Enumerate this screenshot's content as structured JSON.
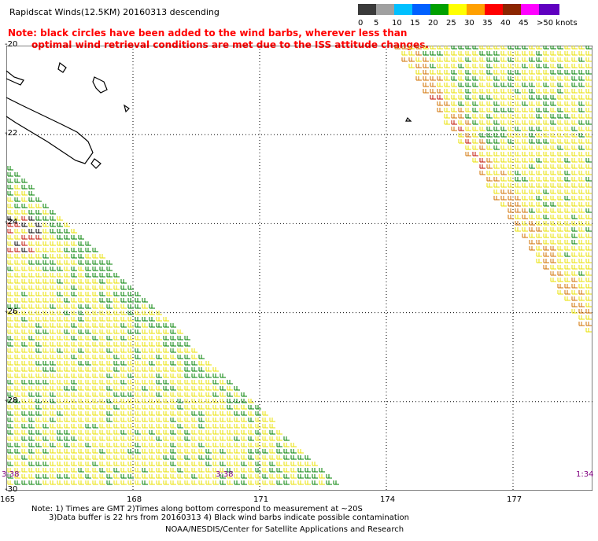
{
  "title": "Rapidscat Winds(12.5KM) 20160313 descending",
  "note_line1": "Note: black circles have been added to the wind barbs, wherever less than",
  "note_line2": "optimal wind retrieval conditions are met due to the ISS attitude changes.",
  "legend": {
    "labels": [
      "0",
      "5",
      "10",
      "15",
      "20",
      "25",
      "30",
      "35",
      "40",
      "45",
      ">50 knots"
    ],
    "colors": [
      "#3a3a3a",
      "#a0a0a0",
      "#00c0ff",
      "#0060ff",
      "#00a000",
      "#ffff00",
      "#ffa000",
      "#ff0000",
      "#8b2500",
      "#ff00ff",
      "#6000c0"
    ]
  },
  "lat_labels": [
    "-20",
    "-22",
    "-24",
    "-26",
    "-28",
    "-30"
  ],
  "lon_labels": [
    "165",
    "168",
    "171",
    "174",
    "177"
  ],
  "time_labels": [
    "3:38",
    "3:38",
    "1:34"
  ],
  "footnote1": "Note: 1) Times are GMT 2)Times along bottom correspond to measurement at ~20S",
  "footnote2": "3)Data buffer is 22 hrs from 20160313 4) Black wind barbs indicate possible contamination",
  "credit": "NOAA/NESDIS/Center for Satellite Applications and Research",
  "barb_colors": {
    "yellow": "#e8e000",
    "green": "#008000",
    "orange": "#d07000",
    "red": "#c01000",
    "black": "#000000"
  }
}
